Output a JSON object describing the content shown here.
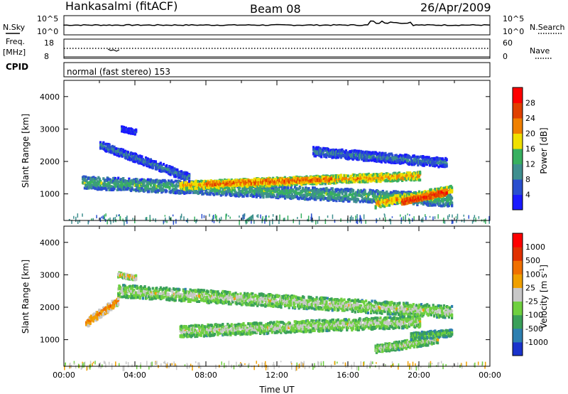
{
  "header": {
    "station": "Hankasalmi (fitACF)",
    "beam": "Beam 08",
    "date": "26/Apr/2009"
  },
  "nsky_panel": {
    "left_label": "N.Sky",
    "right_label": "N.Search",
    "left_ticks": [
      "10^5",
      "10^0"
    ],
    "right_ticks": [
      "10^5",
      "10^0"
    ]
  },
  "freq_panel": {
    "left_label_line1": "Freq.",
    "left_label_line2": "[MHz]",
    "left_ticks": [
      "18",
      "8"
    ],
    "right_label": "Nave",
    "right_ticks": [
      "60",
      "0"
    ]
  },
  "cpid_panel": {
    "label": "CPID",
    "mode_text": "normal (fast stereo) 153"
  },
  "chart_data": [
    {
      "type": "heatmap",
      "name": "power",
      "ylabel": "Slant Range [km]",
      "ylim": [
        180,
        4500
      ],
      "yticks": [
        "1000",
        "2000",
        "3000",
        "4000"
      ],
      "ytick_values": [
        1000,
        2000,
        3000,
        4000
      ],
      "xlim_hours": [
        0,
        24
      ],
      "colorbar": {
        "label": "Power [dB]",
        "tick_labels": [
          "4",
          "8",
          "12",
          "16",
          "20",
          "24",
          "28"
        ],
        "bands": [
          "#1a1aff",
          "#2a4fcf",
          "#3f8f8f",
          "#38b060",
          "#f0e000",
          "#f08000",
          "#e04000",
          "#ff0000"
        ]
      },
      "echo_regions": [
        {
          "t0": 1.0,
          "t1": 21.8,
          "r_start": 1350,
          "r_end": 800,
          "width": 380,
          "level": 3
        },
        {
          "t0": 6.5,
          "t1": 20.0,
          "r_start": 1250,
          "r_end": 1550,
          "width": 250,
          "level": 5
        },
        {
          "t0": 8.0,
          "t1": 15.0,
          "r_start": 1300,
          "r_end": 1450,
          "width": 150,
          "level": 6
        },
        {
          "t0": 17.5,
          "t1": 21.8,
          "r_start": 700,
          "r_end": 1100,
          "width": 280,
          "level": 5
        },
        {
          "t0": 19.0,
          "t1": 21.5,
          "r_start": 750,
          "r_end": 1050,
          "width": 160,
          "level": 7
        },
        {
          "t0": 2.0,
          "t1": 7.0,
          "r_start": 2500,
          "r_end": 1500,
          "width": 250,
          "level": 2
        },
        {
          "t0": 14.0,
          "t1": 21.5,
          "r_start": 2300,
          "r_end": 1950,
          "width": 280,
          "level": 2
        },
        {
          "t0": 3.2,
          "t1": 4.0,
          "r_start": 3000,
          "r_end": 2900,
          "width": 150,
          "level": 1
        }
      ],
      "ground_band": {
        "r_low": 180,
        "r_high": 400,
        "level": 2
      }
    },
    {
      "type": "heatmap",
      "name": "velocity",
      "ylabel": "Slant Range [km]",
      "ylim": [
        180,
        4500
      ],
      "yticks": [
        "1000",
        "2000",
        "3000",
        "4000"
      ],
      "ytick_values": [
        1000,
        2000,
        3000,
        4000
      ],
      "xlim_hours": [
        0,
        24
      ],
      "xticks": [
        "00:00",
        "04:00",
        "08:00",
        "12:00",
        "16:00",
        "20:00",
        "00:00"
      ],
      "xlabel": "Time UT",
      "colorbar": {
        "label": "Velocity [m s^-1]",
        "tick_labels": [
          "1000",
          "500",
          "100",
          "25",
          "-25",
          "-100",
          "-500",
          "-1000"
        ],
        "bands": [
          "#1a33cc",
          "#2d7fb0",
          "#3aa05a",
          "#6fd040",
          "#c8c8c8",
          "#f0a000",
          "#f07000",
          "#e03000",
          "#ff0000"
        ]
      },
      "echo_regions": [
        {
          "t0": 3.0,
          "t1": 21.8,
          "r_start": 2500,
          "r_end": 1850,
          "width": 380,
          "level": 4
        },
        {
          "t0": 6.5,
          "t1": 20.0,
          "r_start": 1250,
          "r_end": 1550,
          "width": 350,
          "level": 4
        },
        {
          "t0": 17.5,
          "t1": 21.0,
          "r_start": 700,
          "r_end": 1000,
          "width": 250,
          "level": 4
        },
        {
          "t0": 1.2,
          "t1": 3.0,
          "r_start": 1500,
          "r_end": 2200,
          "width": 260,
          "level": 6
        },
        {
          "t0": 19.5,
          "t1": 21.8,
          "r_start": 1100,
          "r_end": 1200,
          "width": 220,
          "level": 3
        },
        {
          "t0": 3.0,
          "t1": 4.0,
          "r_start": 3000,
          "r_end": 2900,
          "width": 150,
          "level": 5
        }
      ],
      "ground_band": {
        "r_low": 180,
        "r_high": 350,
        "level": 4
      }
    }
  ]
}
